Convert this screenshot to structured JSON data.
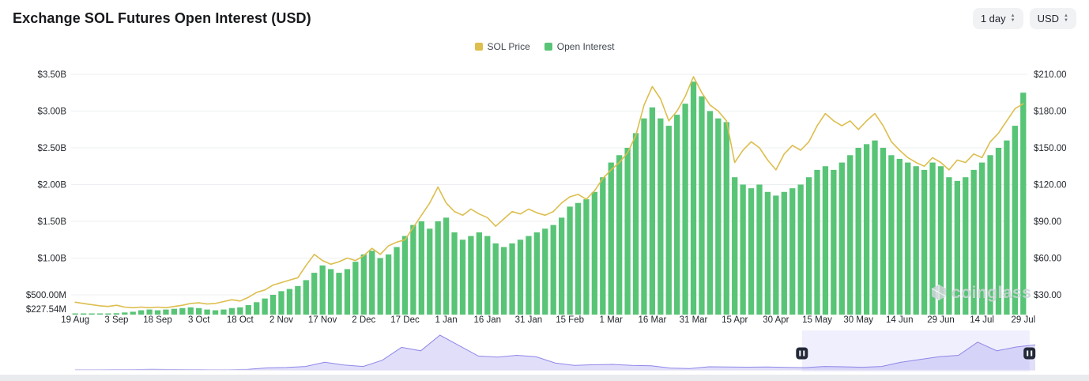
{
  "header": {
    "title": "Exchange SOL Futures Open Interest (USD)",
    "interval_select": "1 day",
    "currency_select": "USD"
  },
  "legend": [
    {
      "label": "SOL Price",
      "color": "#ddbe4e"
    },
    {
      "label": "Open Interest",
      "color": "#58c476"
    }
  ],
  "watermark": "coinglass",
  "chart_data": {
    "type": "mixed",
    "title": "Exchange SOL Futures Open Interest (USD)",
    "grid": true,
    "legend_position": "top-center",
    "x_tick_labels": [
      "19 Aug",
      "3 Sep",
      "18 Sep",
      "3 Oct",
      "18 Oct",
      "2 Nov",
      "17 Nov",
      "2 Dec",
      "17 Dec",
      "1 Jan",
      "16 Jan",
      "31 Jan",
      "15 Feb",
      "1 Mar",
      "16 Mar",
      "31 Mar",
      "15 Apr",
      "30 Apr",
      "15 May",
      "30 May",
      "14 Jun",
      "29 Jun",
      "14 Jul",
      "29 Jul"
    ],
    "x_tick_every": 5,
    "left_axis": {
      "labels": [
        "$3.50B",
        "$3.00B",
        "$2.50B",
        "$2.00B",
        "$1.50B",
        "$1.00B",
        "$500.00M",
        "$227.54M"
      ],
      "gridline_values": [
        3.5,
        3.0,
        2.5,
        2.0,
        1.5,
        1.0,
        0.5
      ],
      "min": 0.22754,
      "unit": "B USD"
    },
    "right_axis": {
      "labels": [
        "$210.00",
        "$180.00",
        "$150.00",
        "$120.00",
        "$90.00",
        "$60.00",
        "$30.00"
      ],
      "gridline_values": [
        210,
        180,
        150,
        120,
        90,
        60,
        30
      ],
      "unit": "USD"
    },
    "series": [
      {
        "name": "Open Interest",
        "type": "bar",
        "axis": "left",
        "color": "#58c476",
        "unit": "billions USD",
        "values": [
          0.23,
          0.235,
          0.24,
          0.24,
          0.245,
          0.25,
          0.26,
          0.27,
          0.29,
          0.3,
          0.29,
          0.3,
          0.31,
          0.32,
          0.33,
          0.32,
          0.3,
          0.29,
          0.3,
          0.32,
          0.33,
          0.36,
          0.4,
          0.45,
          0.5,
          0.55,
          0.58,
          0.62,
          0.7,
          0.8,
          0.9,
          0.85,
          0.8,
          0.85,
          0.95,
          1.05,
          1.1,
          1.0,
          1.05,
          1.15,
          1.3,
          1.45,
          1.5,
          1.4,
          1.5,
          1.55,
          1.35,
          1.25,
          1.3,
          1.35,
          1.3,
          1.2,
          1.15,
          1.2,
          1.25,
          1.3,
          1.35,
          1.4,
          1.45,
          1.55,
          1.7,
          1.75,
          1.8,
          1.9,
          2.1,
          2.3,
          2.4,
          2.5,
          2.7,
          2.9,
          3.05,
          2.9,
          2.8,
          2.95,
          3.1,
          3.4,
          3.2,
          3.0,
          2.9,
          2.85,
          2.1,
          2.0,
          1.95,
          2.0,
          1.9,
          1.85,
          1.9,
          1.95,
          2.0,
          2.1,
          2.2,
          2.25,
          2.2,
          2.3,
          2.4,
          2.5,
          2.55,
          2.6,
          2.5,
          2.4,
          2.35,
          2.3,
          2.25,
          2.2,
          2.3,
          2.25,
          2.1,
          2.05,
          2.1,
          2.2,
          2.3,
          2.4,
          2.5,
          2.6,
          2.8,
          3.25
        ]
      },
      {
        "name": "SOL Price",
        "type": "line",
        "axis": "right",
        "color": "#ddbe4e",
        "unit": "USD",
        "values": [
          24,
          23,
          22,
          21,
          20.5,
          21.5,
          20,
          19.5,
          20,
          19.5,
          20,
          19.5,
          20.5,
          21.5,
          23,
          23.5,
          22.5,
          23,
          24.5,
          26,
          25,
          28,
          32,
          34,
          38,
          40,
          42,
          44,
          54,
          63,
          58,
          55,
          57,
          60,
          58,
          62,
          68,
          63,
          70,
          73,
          75,
          85,
          95,
          105,
          118,
          105,
          98,
          95,
          100,
          96,
          93,
          86,
          92,
          98,
          96,
          100,
          97,
          95,
          98,
          105,
          110,
          112,
          108,
          115,
          125,
          132,
          138,
          146,
          160,
          185,
          200,
          190,
          172,
          180,
          192,
          208,
          195,
          185,
          180,
          172,
          138,
          148,
          155,
          150,
          140,
          132,
          145,
          152,
          148,
          155,
          168,
          178,
          172,
          168,
          172,
          165,
          172,
          178,
          168,
          155,
          148,
          142,
          138,
          135,
          142,
          138,
          132,
          140,
          138,
          145,
          142,
          155,
          162,
          172,
          182,
          186
        ]
      }
    ]
  },
  "navigator": {
    "values": [
      0.005,
      0.005,
      0.01,
      0.01,
      0.015,
      0.012,
      0.008,
      0.006,
      0.006,
      0.015,
      0.06,
      0.07,
      0.1,
      0.22,
      0.14,
      0.1,
      0.28,
      0.65,
      0.55,
      1.0,
      0.7,
      0.4,
      0.37,
      0.42,
      0.38,
      0.2,
      0.13,
      0.15,
      0.16,
      0.13,
      0.12,
      0.055,
      0.04,
      0.09,
      0.085,
      0.08,
      0.085,
      0.075,
      0.065,
      0.1,
      0.09,
      0.078,
      0.1,
      0.22,
      0.3,
      0.38,
      0.42,
      0.8,
      0.55,
      0.66,
      0.72
    ],
    "selection_start": 0.757,
    "selection_end": 0.994,
    "handle_icon": "pause-bars"
  }
}
